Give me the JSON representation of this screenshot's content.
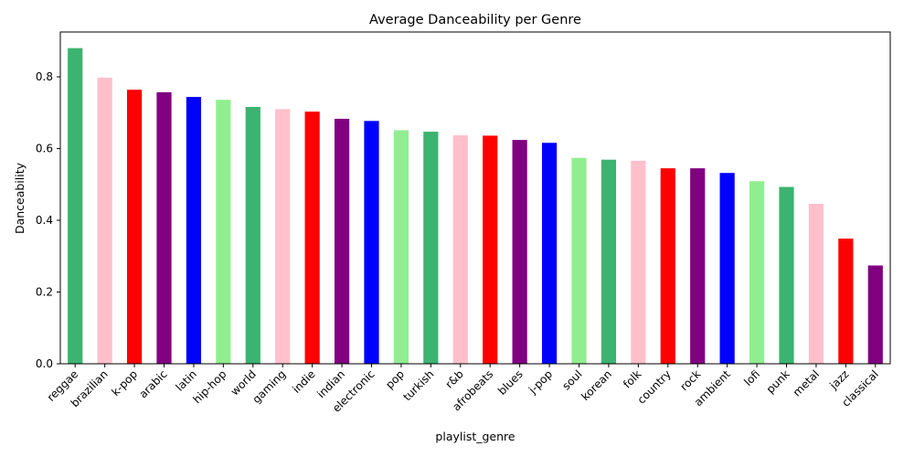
{
  "chart_data": {
    "type": "bar",
    "title": "Average Danceability per Genre",
    "xlabel": "playlist_genre",
    "ylabel": "Danceability",
    "ylim": [
      0,
      0.925
    ],
    "yticks": [
      "0.0",
      "0.2",
      "0.4",
      "0.6",
      "0.8"
    ],
    "ytick_values": [
      0.0,
      0.2,
      0.4,
      0.6,
      0.8
    ],
    "grid": false,
    "legend": "none",
    "categories": [
      "reggae",
      "brazilian",
      "k-pop",
      "arabic",
      "latin",
      "hip-hop",
      "world",
      "gaming",
      "indie",
      "indian",
      "electronic",
      "pop",
      "turkish",
      "r&b",
      "afrobeats",
      "blues",
      "j-pop",
      "soul",
      "korean",
      "folk",
      "country",
      "rock",
      "ambient",
      "lofi",
      "punk",
      "metal",
      "jazz",
      "classical"
    ],
    "values": [
      0.88,
      0.798,
      0.764,
      0.757,
      0.744,
      0.736,
      0.716,
      0.71,
      0.703,
      0.683,
      0.677,
      0.651,
      0.647,
      0.637,
      0.636,
      0.624,
      0.616,
      0.574,
      0.569,
      0.566,
      0.545,
      0.545,
      0.532,
      0.509,
      0.493,
      0.446,
      0.349,
      0.274
    ],
    "colors": [
      "#3cb371",
      "#ffc0cb",
      "#ff0000",
      "#800080",
      "#0000ff",
      "#90ee90",
      "#3cb371",
      "#ffc0cb",
      "#ff0000",
      "#800080",
      "#0000ff",
      "#90ee90",
      "#3cb371",
      "#ffc0cb",
      "#ff0000",
      "#800080",
      "#0000ff",
      "#90ee90",
      "#3cb371",
      "#ffc0cb",
      "#ff0000",
      "#800080",
      "#0000ff",
      "#90ee90",
      "#3cb371",
      "#ffc0cb",
      "#ff0000",
      "#800080"
    ]
  }
}
